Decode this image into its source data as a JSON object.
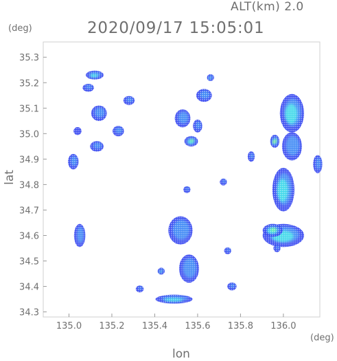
{
  "header": {
    "altitude_label": "ALT(km) 2.0",
    "timestamp": "2020/09/17 15:05:01",
    "lat_unit": "(deg)",
    "lon_unit": "(deg)",
    "x_axis_label": "lon",
    "y_axis_label": "lat"
  },
  "chart_data": {
    "type": "heatmap",
    "xlabel": "lon",
    "ylabel": "lat",
    "xlim": [
      134.88,
      136.17
    ],
    "ylim": [
      34.28,
      35.36
    ],
    "x_ticks": [
      135.0,
      135.2,
      135.4,
      135.6,
      135.8,
      136.0
    ],
    "x_tick_labels": [
      "135.0",
      "135.2",
      "135.4",
      "135.6",
      "135.8",
      "136.0"
    ],
    "y_ticks": [
      34.3,
      34.4,
      34.5,
      34.6,
      34.7,
      34.8,
      34.9,
      35.0,
      35.1,
      35.2,
      35.3
    ],
    "y_tick_labels": [
      "34.3",
      "34.4",
      "34.5",
      "34.6",
      "34.7",
      "34.8",
      "34.9",
      "35.0",
      "35.1",
      "35.2",
      "35.3"
    ],
    "colors": {
      "weak": "#2a3cf0",
      "light": "#3f8af5",
      "moderate": "#3fd8ea",
      "strong": "#6ef0a0",
      "heavy": "#c8f040"
    },
    "echoes": [
      {
        "lon": 135.12,
        "lat": 35.23,
        "rx": 0.035,
        "ry": 0.012,
        "level": "moderate"
      },
      {
        "lon": 135.09,
        "lat": 35.18,
        "rx": 0.02,
        "ry": 0.01,
        "level": "light"
      },
      {
        "lon": 135.14,
        "lat": 35.08,
        "rx": 0.03,
        "ry": 0.025,
        "level": "light"
      },
      {
        "lon": 135.04,
        "lat": 35.01,
        "rx": 0.012,
        "ry": 0.01,
        "level": "weak"
      },
      {
        "lon": 135.13,
        "lat": 34.95,
        "rx": 0.025,
        "ry": 0.015,
        "level": "light"
      },
      {
        "lon": 135.02,
        "lat": 34.89,
        "rx": 0.018,
        "ry": 0.025,
        "level": "light"
      },
      {
        "lon": 135.23,
        "lat": 35.01,
        "rx": 0.02,
        "ry": 0.015,
        "level": "light"
      },
      {
        "lon": 135.28,
        "lat": 35.13,
        "rx": 0.02,
        "ry": 0.012,
        "level": "light"
      },
      {
        "lon": 135.05,
        "lat": 34.6,
        "rx": 0.02,
        "ry": 0.04,
        "level": "light"
      },
      {
        "lon": 135.53,
        "lat": 35.06,
        "rx": 0.03,
        "ry": 0.03,
        "level": "light"
      },
      {
        "lon": 135.57,
        "lat": 34.97,
        "rx": 0.025,
        "ry": 0.015,
        "level": "strong"
      },
      {
        "lon": 135.6,
        "lat": 35.03,
        "rx": 0.015,
        "ry": 0.02,
        "level": "light"
      },
      {
        "lon": 135.63,
        "lat": 35.15,
        "rx": 0.03,
        "ry": 0.02,
        "level": "light"
      },
      {
        "lon": 135.66,
        "lat": 35.22,
        "rx": 0.01,
        "ry": 0.008,
        "level": "moderate"
      },
      {
        "lon": 135.85,
        "lat": 34.91,
        "rx": 0.01,
        "ry": 0.015,
        "level": "light"
      },
      {
        "lon": 136.04,
        "lat": 35.08,
        "rx": 0.05,
        "ry": 0.07,
        "level": "moderate"
      },
      {
        "lon": 135.96,
        "lat": 34.97,
        "rx": 0.015,
        "ry": 0.02,
        "level": "heavy"
      },
      {
        "lon": 136.04,
        "lat": 34.95,
        "rx": 0.04,
        "ry": 0.05,
        "level": "light"
      },
      {
        "lon": 136.0,
        "lat": 34.78,
        "rx": 0.045,
        "ry": 0.08,
        "level": "moderate"
      },
      {
        "lon": 136.16,
        "lat": 34.88,
        "rx": 0.015,
        "ry": 0.03,
        "level": "light"
      },
      {
        "lon": 136.0,
        "lat": 34.6,
        "rx": 0.09,
        "ry": 0.04,
        "level": "moderate"
      },
      {
        "lon": 135.95,
        "lat": 34.62,
        "rx": 0.04,
        "ry": 0.02,
        "level": "strong"
      },
      {
        "lon": 135.97,
        "lat": 34.55,
        "rx": 0.01,
        "ry": 0.01,
        "level": "light"
      },
      {
        "lon": 135.52,
        "lat": 34.62,
        "rx": 0.05,
        "ry": 0.05,
        "level": "light"
      },
      {
        "lon": 135.56,
        "lat": 34.47,
        "rx": 0.04,
        "ry": 0.05,
        "level": "light"
      },
      {
        "lon": 135.43,
        "lat": 34.46,
        "rx": 0.01,
        "ry": 0.008,
        "level": "moderate"
      },
      {
        "lon": 135.49,
        "lat": 34.35,
        "rx": 0.08,
        "ry": 0.012,
        "level": "moderate"
      },
      {
        "lon": 135.33,
        "lat": 34.39,
        "rx": 0.012,
        "ry": 0.008,
        "level": "light"
      },
      {
        "lon": 135.76,
        "lat": 34.4,
        "rx": 0.015,
        "ry": 0.01,
        "level": "light"
      },
      {
        "lon": 135.74,
        "lat": 34.54,
        "rx": 0.01,
        "ry": 0.008,
        "level": "light"
      },
      {
        "lon": 135.55,
        "lat": 34.78,
        "rx": 0.01,
        "ry": 0.008,
        "level": "light"
      },
      {
        "lon": 135.72,
        "lat": 34.81,
        "rx": 0.01,
        "ry": 0.008,
        "level": "light"
      }
    ]
  }
}
